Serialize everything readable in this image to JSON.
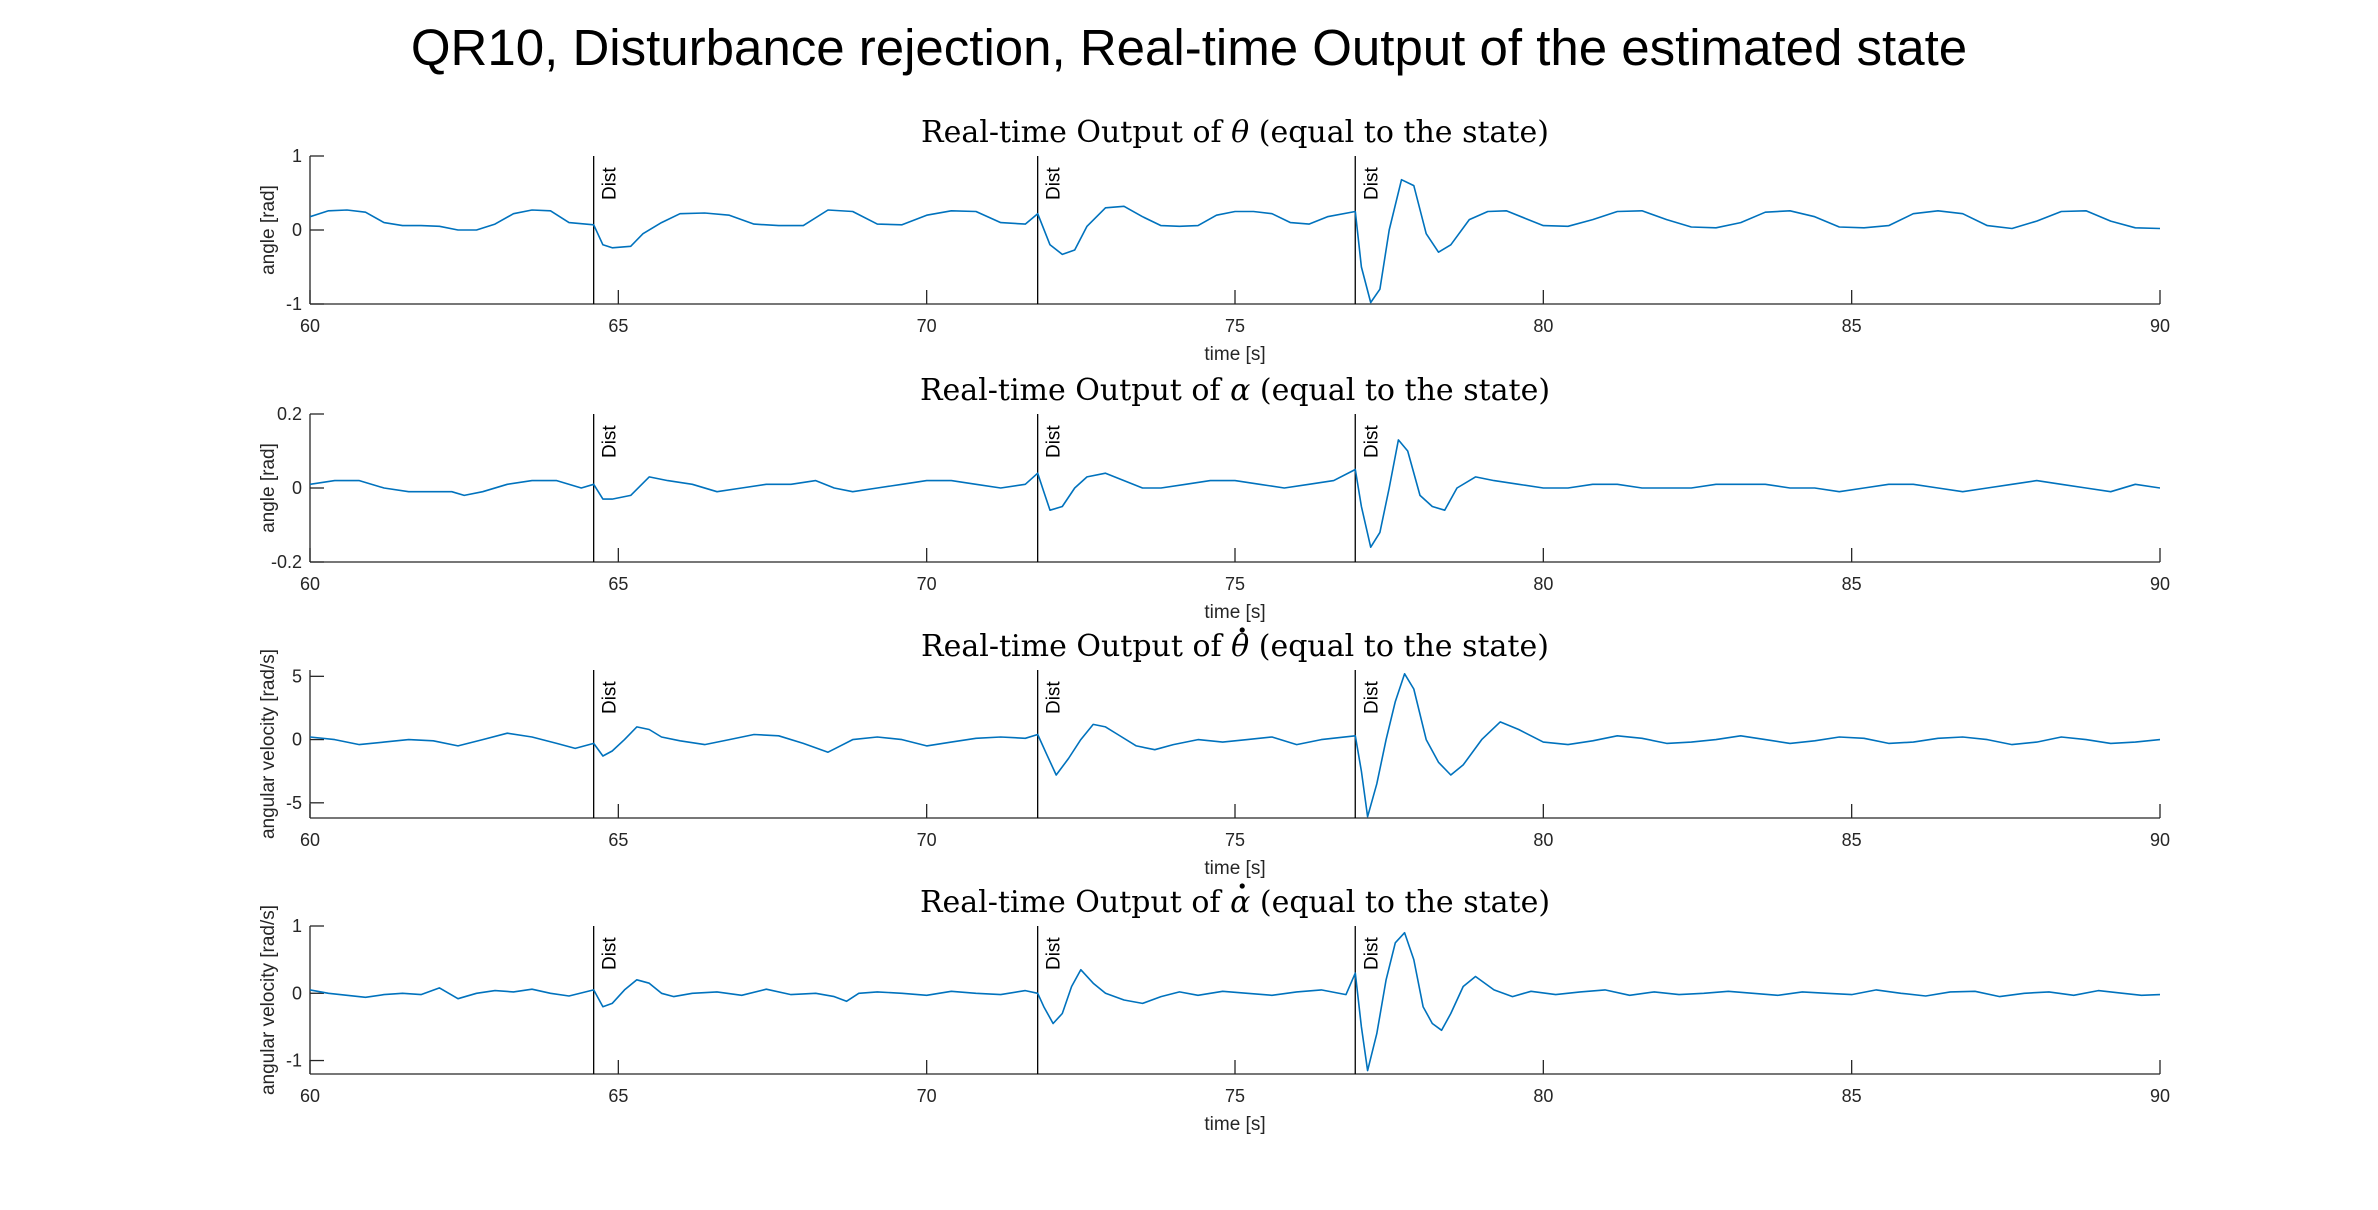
{
  "suptitle": "QR10, Disturbance rejection, Real-time Output of the estimated state",
  "colors": {
    "series": "#0072BD",
    "axes": "#262626",
    "marker": "#000000"
  },
  "chart_data": [
    {
      "type": "line",
      "title_prefix": "Real-time Output of ",
      "symbol": "θ",
      "symbol_dot": false,
      "title_suffix": " (equal to the state)",
      "xlabel": "time [s]",
      "ylabel": "angle [rad]",
      "xlim": [
        60,
        90
      ],
      "ylim": [
        -1,
        1
      ],
      "xticks": [
        60,
        65,
        70,
        75,
        80,
        85,
        90
      ],
      "yticks": [
        -1,
        0,
        1
      ],
      "yticklabels": [
        "-1",
        "0",
        "1"
      ],
      "markers": [
        {
          "x": 64.6,
          "label": "Dist"
        },
        {
          "x": 71.8,
          "label": "Dist"
        },
        {
          "x": 76.95,
          "label": "Dist"
        }
      ],
      "series": [
        {
          "x": [
            60,
            60.3,
            60.6,
            60.9,
            61.2,
            61.5,
            61.8,
            62.1,
            62.4,
            62.7,
            63.0,
            63.3,
            63.6,
            63.9,
            64.2,
            64.6,
            64.75,
            64.9,
            65.2,
            65.4,
            65.7,
            66.0,
            66.4,
            66.8,
            67.2,
            67.6,
            68.0,
            68.4,
            68.8,
            69.2,
            69.6,
            70.0,
            70.4,
            70.8,
            71.2,
            71.6,
            71.8,
            72.0,
            72.2,
            72.4,
            72.6,
            72.9,
            73.2,
            73.5,
            73.8,
            74.1,
            74.4,
            74.7,
            75.0,
            75.3,
            75.6,
            75.9,
            76.2,
            76.5,
            76.95,
            77.05,
            77.2,
            77.35,
            77.5,
            77.7,
            77.9,
            78.1,
            78.3,
            78.5,
            78.8,
            79.1,
            79.4,
            79.7,
            80.0,
            80.4,
            80.8,
            81.2,
            81.6,
            82.0,
            82.4,
            82.8,
            83.2,
            83.6,
            84.0,
            84.4,
            84.8,
            85.2,
            85.6,
            86.0,
            86.4,
            86.8,
            87.2,
            87.6,
            88.0,
            88.4,
            88.8,
            89.2,
            89.6,
            90.0
          ],
          "y": [
            0.18,
            0.26,
            0.27,
            0.24,
            0.1,
            0.06,
            0.06,
            0.05,
            0.0,
            0.0,
            0.08,
            0.22,
            0.27,
            0.26,
            0.1,
            0.07,
            -0.2,
            -0.24,
            -0.22,
            -0.05,
            0.1,
            0.22,
            0.23,
            0.2,
            0.08,
            0.06,
            0.06,
            0.27,
            0.25,
            0.08,
            0.07,
            0.2,
            0.26,
            0.25,
            0.1,
            0.08,
            0.22,
            -0.2,
            -0.33,
            -0.27,
            0.05,
            0.3,
            0.32,
            0.18,
            0.06,
            0.05,
            0.06,
            0.2,
            0.25,
            0.25,
            0.22,
            0.1,
            0.08,
            0.18,
            0.25,
            -0.5,
            -0.98,
            -0.8,
            0.0,
            0.68,
            0.6,
            -0.05,
            -0.3,
            -0.2,
            0.14,
            0.25,
            0.26,
            0.16,
            0.06,
            0.05,
            0.14,
            0.25,
            0.26,
            0.14,
            0.04,
            0.03,
            0.1,
            0.24,
            0.26,
            0.18,
            0.04,
            0.03,
            0.06,
            0.22,
            0.26,
            0.22,
            0.06,
            0.02,
            0.12,
            0.25,
            0.26,
            0.12,
            0.03,
            0.02
          ]
        }
      ]
    },
    {
      "type": "line",
      "title_prefix": "Real-time Output of ",
      "symbol": "α",
      "symbol_dot": false,
      "title_suffix": " (equal to the state)",
      "xlabel": "time [s]",
      "ylabel": "angle [rad]",
      "xlim": [
        60,
        90
      ],
      "ylim": [
        -0.2,
        0.2
      ],
      "xticks": [
        60,
        65,
        70,
        75,
        80,
        85,
        90
      ],
      "yticks": [
        -0.2,
        0,
        0.2
      ],
      "yticklabels": [
        "-0.2",
        "0",
        "0.2"
      ],
      "markers": [
        {
          "x": 64.6,
          "label": "Dist"
        },
        {
          "x": 71.8,
          "label": "Dist"
        },
        {
          "x": 76.95,
          "label": "Dist"
        }
      ],
      "series": [
        {
          "x": [
            60,
            60.4,
            60.8,
            61.2,
            61.6,
            62.0,
            62.3,
            62.5,
            62.8,
            63.2,
            63.6,
            64.0,
            64.4,
            64.6,
            64.75,
            64.9,
            65.2,
            65.5,
            65.8,
            66.2,
            66.6,
            67.0,
            67.4,
            67.8,
            68.2,
            68.5,
            68.8,
            69.2,
            69.6,
            70.0,
            70.4,
            70.8,
            71.2,
            71.6,
            71.8,
            71.9,
            72.0,
            72.2,
            72.4,
            72.6,
            72.9,
            73.2,
            73.5,
            73.8,
            74.2,
            74.6,
            75.0,
            75.4,
            75.8,
            76.2,
            76.6,
            76.95,
            77.05,
            77.2,
            77.35,
            77.5,
            77.65,
            77.8,
            78.0,
            78.2,
            78.4,
            78.6,
            78.9,
            79.2,
            79.6,
            80.0,
            80.4,
            80.8,
            81.2,
            81.6,
            82.0,
            82.4,
            82.8,
            83.2,
            83.6,
            84.0,
            84.4,
            84.8,
            85.2,
            85.6,
            86.0,
            86.4,
            86.8,
            87.2,
            87.6,
            88.0,
            88.4,
            88.8,
            89.2,
            89.6,
            90.0
          ],
          "y": [
            0.01,
            0.02,
            0.02,
            0.0,
            -0.01,
            -0.01,
            -0.01,
            -0.02,
            -0.01,
            0.01,
            0.02,
            0.02,
            0.0,
            0.01,
            -0.03,
            -0.03,
            -0.02,
            0.03,
            0.02,
            0.01,
            -0.01,
            0.0,
            0.01,
            0.01,
            0.02,
            0.0,
            -0.01,
            0.0,
            0.01,
            0.02,
            0.02,
            0.01,
            0.0,
            0.01,
            0.04,
            -0.01,
            -0.06,
            -0.05,
            0.0,
            0.03,
            0.04,
            0.02,
            0.0,
            0.0,
            0.01,
            0.02,
            0.02,
            0.01,
            0.0,
            0.01,
            0.02,
            0.05,
            -0.05,
            -0.16,
            -0.12,
            0.0,
            0.13,
            0.1,
            -0.02,
            -0.05,
            -0.06,
            0.0,
            0.03,
            0.02,
            0.01,
            0.0,
            0.0,
            0.01,
            0.01,
            0.0,
            0.0,
            0.0,
            0.01,
            0.01,
            0.01,
            0.0,
            0.0,
            -0.01,
            0.0,
            0.01,
            0.01,
            0.0,
            -0.01,
            0.0,
            0.01,
            0.02,
            0.01,
            0.0,
            -0.01,
            0.01,
            0.0
          ]
        }
      ]
    },
    {
      "type": "line",
      "title_prefix": "Real-time Output of ",
      "symbol": "θ",
      "symbol_dot": true,
      "title_suffix": " (equal to the state)",
      "xlabel": "time [s]",
      "ylabel": "angular velocity [rad/s]",
      "xlim": [
        60,
        90
      ],
      "ylim": [
        -6.2,
        5.5
      ],
      "xticks": [
        60,
        65,
        70,
        75,
        80,
        85,
        90
      ],
      "yticks": [
        -5,
        0,
        5
      ],
      "yticklabels": [
        "-5",
        "0",
        "5"
      ],
      "markers": [
        {
          "x": 64.6,
          "label": "Dist"
        },
        {
          "x": 71.8,
          "label": "Dist"
        },
        {
          "x": 76.95,
          "label": "Dist"
        }
      ],
      "series": [
        {
          "x": [
            60,
            60.4,
            60.8,
            61.2,
            61.6,
            62.0,
            62.4,
            62.8,
            63.2,
            63.6,
            64.0,
            64.3,
            64.6,
            64.75,
            64.9,
            65.1,
            65.3,
            65.5,
            65.7,
            66.0,
            66.4,
            66.8,
            67.2,
            67.6,
            68.0,
            68.4,
            68.6,
            68.8,
            69.2,
            69.6,
            70.0,
            70.4,
            70.8,
            71.2,
            71.6,
            71.8,
            71.95,
            72.1,
            72.3,
            72.5,
            72.7,
            72.9,
            73.1,
            73.4,
            73.7,
            74.0,
            74.4,
            74.8,
            75.2,
            75.6,
            76.0,
            76.4,
            76.95,
            77.05,
            77.15,
            77.3,
            77.45,
            77.6,
            77.75,
            77.9,
            78.1,
            78.3,
            78.5,
            78.7,
            79.0,
            79.3,
            79.6,
            80.0,
            80.4,
            80.8,
            81.2,
            81.6,
            82.0,
            82.4,
            82.8,
            83.2,
            83.6,
            84.0,
            84.4,
            84.8,
            85.2,
            85.6,
            86.0,
            86.4,
            86.8,
            87.2,
            87.6,
            88.0,
            88.4,
            88.8,
            89.2,
            89.6,
            90.0
          ],
          "y": [
            0.2,
            0.0,
            -0.4,
            -0.2,
            0.0,
            -0.1,
            -0.5,
            0.0,
            0.5,
            0.2,
            -0.3,
            -0.7,
            -0.3,
            -1.3,
            -0.9,
            0.0,
            1.0,
            0.8,
            0.2,
            -0.1,
            -0.4,
            0.0,
            0.4,
            0.3,
            -0.3,
            -1.0,
            -0.5,
            0.0,
            0.2,
            0.0,
            -0.5,
            -0.2,
            0.1,
            0.2,
            0.1,
            0.4,
            -1.2,
            -2.8,
            -1.5,
            0.0,
            1.2,
            1.0,
            0.4,
            -0.5,
            -0.8,
            -0.4,
            0.0,
            -0.2,
            0.0,
            0.2,
            -0.4,
            0.0,
            0.3,
            -2.5,
            -6.1,
            -3.5,
            0.0,
            3.0,
            5.2,
            4.0,
            0.0,
            -1.8,
            -2.8,
            -2.0,
            0.0,
            1.4,
            0.8,
            -0.2,
            -0.4,
            -0.1,
            0.3,
            0.1,
            -0.3,
            -0.2,
            0.0,
            0.3,
            0.0,
            -0.3,
            -0.1,
            0.2,
            0.1,
            -0.3,
            -0.2,
            0.1,
            0.2,
            0.0,
            -0.4,
            -0.2,
            0.2,
            0.0,
            -0.3,
            -0.2,
            0.0
          ]
        }
      ]
    },
    {
      "type": "line",
      "title_prefix": "Real-time Output of ",
      "symbol": "α",
      "symbol_dot": true,
      "title_suffix": " (equal to the state)",
      "xlabel": "time [s]",
      "ylabel": "angular velocity [rad/s]",
      "xlim": [
        60,
        90
      ],
      "ylim": [
        -1.2,
        1.0
      ],
      "xticks": [
        60,
        65,
        70,
        75,
        80,
        85,
        90
      ],
      "yticks": [
        -1,
        0,
        1
      ],
      "yticklabels": [
        "-1",
        "0",
        "1"
      ],
      "markers": [
        {
          "x": 64.6,
          "label": "Dist"
        },
        {
          "x": 71.8,
          "label": "Dist"
        },
        {
          "x": 76.95,
          "label": "Dist"
        }
      ],
      "series": [
        {
          "x": [
            60,
            60.3,
            60.6,
            60.9,
            61.2,
            61.5,
            61.8,
            62.1,
            62.4,
            62.7,
            63.0,
            63.3,
            63.6,
            63.9,
            64.2,
            64.6,
            64.75,
            64.9,
            65.1,
            65.3,
            65.5,
            65.7,
            65.9,
            66.2,
            66.6,
            67.0,
            67.4,
            67.8,
            68.2,
            68.5,
            68.7,
            68.9,
            69.2,
            69.6,
            70.0,
            70.4,
            70.8,
            71.2,
            71.6,
            71.8,
            71.9,
            72.05,
            72.2,
            72.35,
            72.5,
            72.7,
            72.9,
            73.2,
            73.5,
            73.8,
            74.1,
            74.4,
            74.8,
            75.2,
            75.6,
            76.0,
            76.4,
            76.8,
            76.95,
            77.05,
            77.15,
            77.3,
            77.45,
            77.6,
            77.75,
            77.9,
            78.05,
            78.2,
            78.35,
            78.5,
            78.7,
            78.9,
            79.2,
            79.5,
            79.8,
            80.2,
            80.6,
            81.0,
            81.4,
            81.8,
            82.2,
            82.6,
            83.0,
            83.4,
            83.8,
            84.2,
            84.6,
            85.0,
            85.4,
            85.8,
            86.2,
            86.6,
            87.0,
            87.4,
            87.8,
            88.2,
            88.6,
            89.0,
            89.4,
            89.7,
            90.0
          ],
          "y": [
            0.05,
            0.0,
            -0.03,
            -0.06,
            -0.02,
            0.0,
            -0.02,
            0.08,
            -0.08,
            0.0,
            0.04,
            0.02,
            0.06,
            0.0,
            -0.04,
            0.05,
            -0.2,
            -0.15,
            0.05,
            0.2,
            0.15,
            0.0,
            -0.05,
            0.0,
            0.02,
            -0.03,
            0.06,
            -0.02,
            0.0,
            -0.05,
            -0.12,
            0.0,
            0.02,
            0.0,
            -0.03,
            0.03,
            0.0,
            -0.02,
            0.04,
            0.0,
            -0.2,
            -0.45,
            -0.3,
            0.1,
            0.35,
            0.15,
            0.0,
            -0.1,
            -0.15,
            -0.05,
            0.02,
            -0.03,
            0.03,
            0.0,
            -0.03,
            0.02,
            0.05,
            -0.02,
            0.3,
            -0.5,
            -1.15,
            -0.6,
            0.2,
            0.75,
            0.9,
            0.5,
            -0.2,
            -0.45,
            -0.55,
            -0.3,
            0.1,
            0.25,
            0.05,
            -0.05,
            0.03,
            -0.02,
            0.02,
            0.05,
            -0.03,
            0.02,
            -0.02,
            0.0,
            0.03,
            0.0,
            -0.03,
            0.02,
            0.0,
            -0.02,
            0.05,
            0.0,
            -0.04,
            0.02,
            0.03,
            -0.05,
            0.0,
            0.02,
            -0.03,
            0.04,
            0.0,
            -0.03,
            -0.02
          ]
        }
      ]
    }
  ]
}
